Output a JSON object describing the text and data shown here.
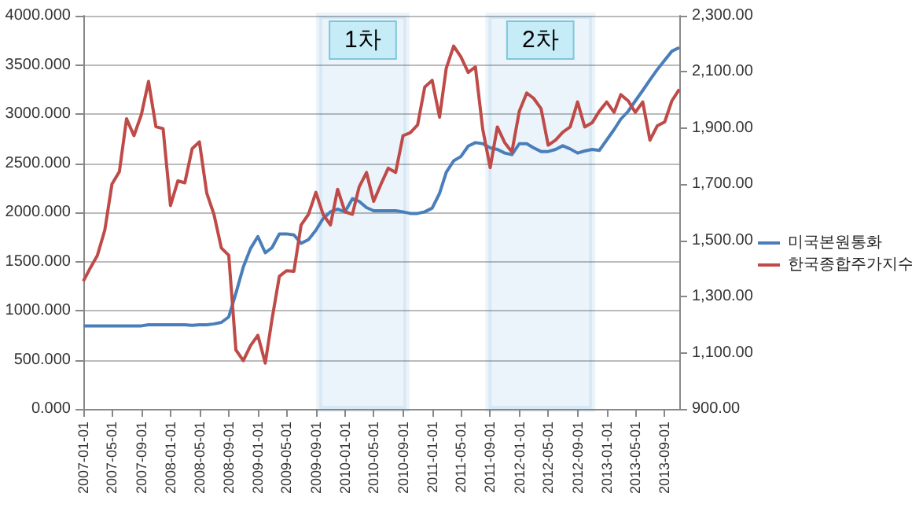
{
  "chart_data": {
    "type": "line",
    "x": [
      "2007-01",
      "2007-02",
      "2007-03",
      "2007-04",
      "2007-05",
      "2007-06",
      "2007-07",
      "2007-08",
      "2007-09",
      "2007-10",
      "2007-11",
      "2007-12",
      "2008-01",
      "2008-02",
      "2008-03",
      "2008-04",
      "2008-05",
      "2008-06",
      "2008-07",
      "2008-08",
      "2008-09",
      "2008-10",
      "2008-11",
      "2008-12",
      "2009-01",
      "2009-02",
      "2009-03",
      "2009-04",
      "2009-05",
      "2009-06",
      "2009-07",
      "2009-08",
      "2009-09",
      "2009-10",
      "2009-11",
      "2009-12",
      "2010-01",
      "2010-02",
      "2010-03",
      "2010-04",
      "2010-05",
      "2010-06",
      "2010-07",
      "2010-08",
      "2010-09",
      "2010-10",
      "2010-11",
      "2010-12",
      "2011-01",
      "2011-02",
      "2011-03",
      "2011-04",
      "2011-05",
      "2011-06",
      "2011-07",
      "2011-08",
      "2011-09",
      "2011-10",
      "2011-11",
      "2011-12",
      "2012-01",
      "2012-02",
      "2012-03",
      "2012-04",
      "2012-05",
      "2012-06",
      "2012-07",
      "2012-08",
      "2012-09",
      "2012-10",
      "2012-11",
      "2012-12",
      "2013-01",
      "2013-02",
      "2013-03",
      "2013-04",
      "2013-05",
      "2013-06",
      "2013-07",
      "2013-08",
      "2013-09",
      "2013-10",
      "2013-11"
    ],
    "series": [
      {
        "name": "미국본원통화",
        "color": "#4a7ebb",
        "values": [
          845,
          845,
          845,
          845,
          845,
          845,
          845,
          845,
          845,
          856,
          856,
          856,
          856,
          856,
          856,
          850,
          856,
          856,
          865,
          880,
          936,
          1177,
          1444,
          1631,
          1754,
          1588,
          1640,
          1781,
          1781,
          1770,
          1685,
          1722,
          1818,
          1936,
          2005,
          2032,
          2005,
          2139,
          2112,
          2048,
          2016,
          2016,
          2016,
          2016,
          2005,
          1989,
          1989,
          2005,
          2043,
          2193,
          2407,
          2524,
          2567,
          2674,
          2709,
          2698,
          2656,
          2640,
          2603,
          2587,
          2698,
          2698,
          2656,
          2619,
          2619,
          2640,
          2677,
          2645,
          2603,
          2624,
          2640,
          2630,
          2736,
          2842,
          2948,
          3028,
          3134,
          3240,
          3347,
          3453,
          3548,
          3639,
          3676
        ]
      },
      {
        "name": "한국종합주가지수",
        "color": "#be4b48",
        "axis": "y2",
        "values": [
          1355,
          1405,
          1447,
          1537,
          1701,
          1745,
          1933,
          1873,
          1948,
          2066,
          1905,
          1898,
          1624,
          1712,
          1705,
          1827,
          1851,
          1668,
          1593,
          1473,
          1447,
          1110,
          1072,
          1125,
          1162,
          1063,
          1218,
          1372,
          1392,
          1390,
          1555,
          1593,
          1671,
          1593,
          1555,
          1682,
          1602,
          1593,
          1690,
          1742,
          1639,
          1701,
          1757,
          1742,
          1873,
          1883,
          1911,
          2046,
          2070,
          1939,
          2113,
          2192,
          2154,
          2098,
          2118,
          1895,
          1759,
          1904,
          1848,
          1815,
          1960,
          2025,
          2006,
          1969,
          1839,
          1857,
          1885,
          1904,
          1993,
          1904,
          1919,
          1960,
          1993,
          1956,
          2019,
          1997,
          1956,
          1993,
          1857,
          1908,
          1922,
          1997,
          2038
        ]
      }
    ],
    "xticks": [
      "2007-01-01",
      "2007-05-01",
      "2007-09-01",
      "2008-01-01",
      "2008-05-01",
      "2008-09-01",
      "2009-01-01",
      "2009-05-01",
      "2009-09-01",
      "2010-01-01",
      "2010-05-01",
      "2010-09-01",
      "2011-01-01",
      "2011-05-01",
      "2011-09-01",
      "2012-01-01",
      "2012-05-01",
      "2012-09-01",
      "2013-01-01",
      "2013-05-01",
      "2013-09-01"
    ],
    "xlim": [
      "2007-01",
      "2013-11"
    ],
    "ylim": [
      0,
      4000
    ],
    "yticks": [
      {
        "value": 0,
        "label": "0.000"
      },
      {
        "value": 500,
        "label": "500.000"
      },
      {
        "value": 1000,
        "label": "1000.000"
      },
      {
        "value": 1500,
        "label": "1500.000"
      },
      {
        "value": 2000,
        "label": "2000.000"
      },
      {
        "value": 2500,
        "label": "2500.000"
      },
      {
        "value": 3000,
        "label": "3000.000"
      },
      {
        "value": 3500,
        "label": "3500.000"
      },
      {
        "value": 4000,
        "label": "4000.000"
      }
    ],
    "y2lim": [
      900,
      2300
    ],
    "y2ticks": [
      {
        "value": 900,
        "label": "900.00"
      },
      {
        "value": 1100,
        "label": "1,100.00"
      },
      {
        "value": 1300,
        "label": "1,300.00"
      },
      {
        "value": 1500,
        "label": "1,500.00"
      },
      {
        "value": 1700,
        "label": "1,700.00"
      },
      {
        "value": 1900,
        "label": "1,900.00"
      },
      {
        "value": 2100,
        "label": "2,100.00"
      },
      {
        "value": 2300,
        "label": "2,300.00"
      }
    ],
    "bands": [
      {
        "axis": "x",
        "from": "2009-09-15",
        "to": "2010-09-15",
        "label": "1차",
        "color": "#0070c0"
      },
      {
        "axis": "x",
        "from": "2011-08-25",
        "to": "2012-11-01",
        "label": "2차",
        "color": "#0070c0"
      }
    ],
    "grid": "y",
    "legend": "right",
    "marker": "none",
    "line_style": "solid"
  }
}
